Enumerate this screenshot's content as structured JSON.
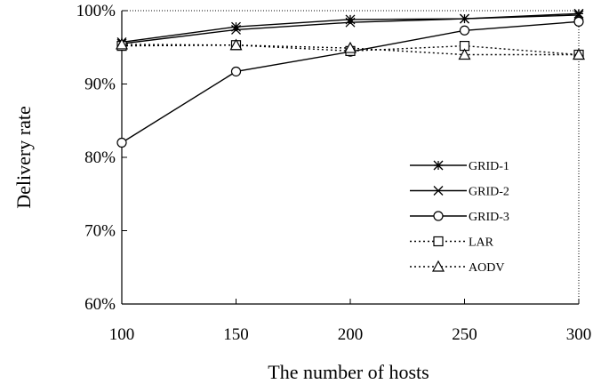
{
  "chart_data": {
    "type": "line",
    "title": "",
    "xlabel": "The number of hosts",
    "ylabel": "Delivery rate",
    "x": [
      100,
      150,
      200,
      250,
      300
    ],
    "xlim": [
      100,
      300
    ],
    "ylim": [
      60,
      100
    ],
    "x_ticks": [
      "100",
      "150",
      "200",
      "250",
      "300"
    ],
    "y_ticks": [
      "60%",
      "70%",
      "80%",
      "90%",
      "100%"
    ],
    "grid": false,
    "legend_position": "lower-right",
    "series": [
      {
        "name": "GRID-1",
        "values": [
          95.7,
          97.8,
          98.8,
          98.9,
          99.6
        ],
        "marker": "asterisk",
        "line": "solid",
        "color": "#000000"
      },
      {
        "name": "GRID-2",
        "values": [
          95.5,
          97.4,
          98.4,
          98.9,
          99.4
        ],
        "marker": "x",
        "line": "solid",
        "color": "#000000"
      },
      {
        "name": "GRID-3",
        "values": [
          82.0,
          91.7,
          94.4,
          97.3,
          98.5
        ],
        "marker": "circle",
        "line": "solid",
        "color": "#000000"
      },
      {
        "name": "LAR",
        "values": [
          95.2,
          95.3,
          94.5,
          95.2,
          94.0
        ],
        "marker": "square",
        "line": "dotted",
        "color": "#000000"
      },
      {
        "name": "AODV",
        "values": [
          95.4,
          95.3,
          94.9,
          94.0,
          94.0
        ],
        "marker": "triangle",
        "line": "dotted",
        "color": "#000000"
      }
    ]
  }
}
